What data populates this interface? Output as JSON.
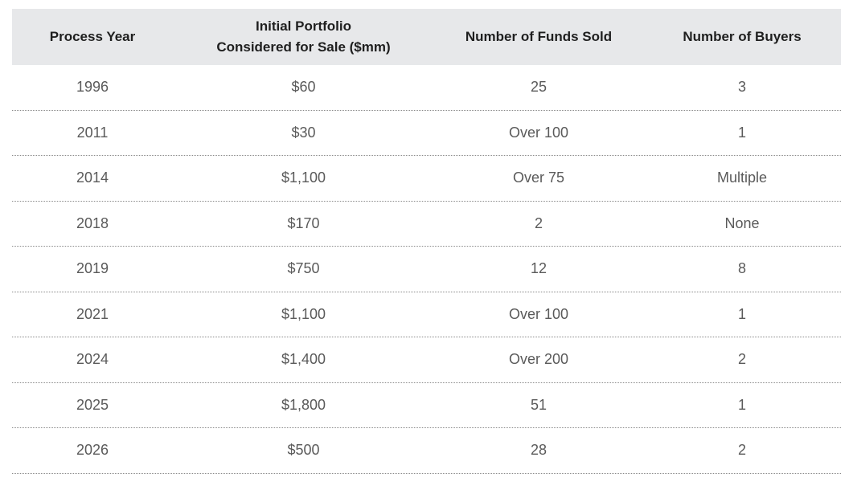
{
  "table": {
    "headers": [
      "Process Year",
      "Initial Portfolio\nConsidered for Sale ($mm)",
      "Number of Funds Sold",
      "Number of Buyers"
    ],
    "rows": [
      [
        "1996",
        "$60",
        "25",
        "3"
      ],
      [
        "2011",
        "$30",
        "Over 100",
        "1"
      ],
      [
        "2014",
        "$1,100",
        "Over 75",
        "Multiple"
      ],
      [
        "2018",
        "$170",
        "2",
        "None"
      ],
      [
        "2019",
        "$750",
        "12",
        "8"
      ],
      [
        "2021",
        "$1,100",
        "Over 100",
        "1"
      ],
      [
        "2024",
        "$1,400",
        "Over 200",
        "2"
      ],
      [
        "2025",
        "$1,800",
        "51",
        "1"
      ],
      [
        "2026",
        "$500",
        "28",
        "2"
      ]
    ],
    "colors": {
      "header_bg": "#e7e8ea",
      "header_text": "#1f1f1f",
      "cell_text": "#5a5a5a",
      "row_divider": "#8a8a8a"
    }
  }
}
